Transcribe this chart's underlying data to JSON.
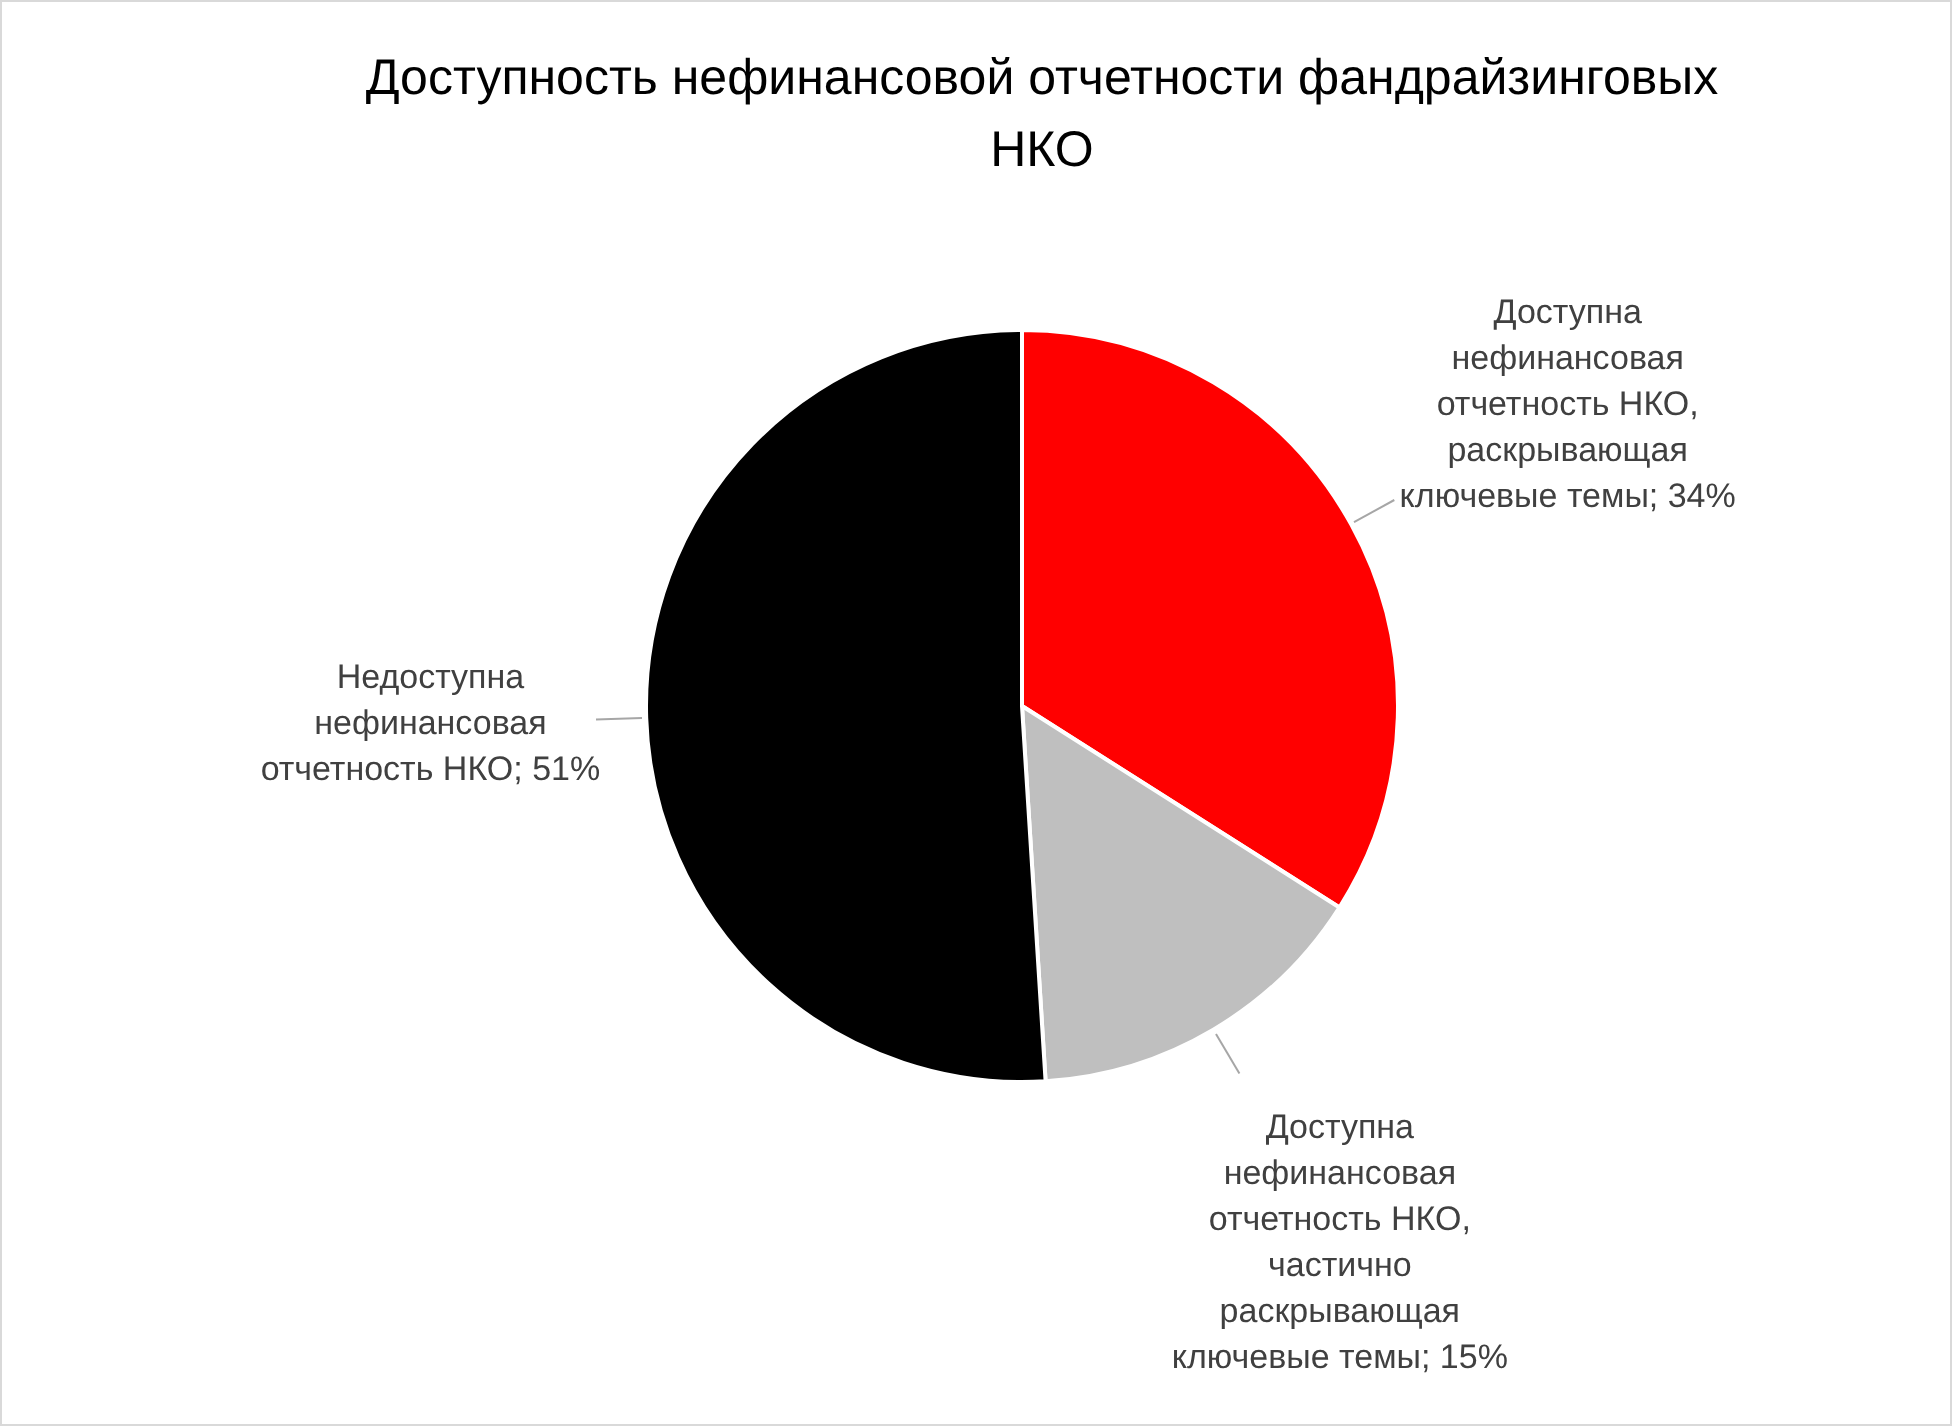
{
  "chart_data": {
    "type": "pie",
    "title": "Доступность нефинансовой отчетности фандрайзинговых НКО",
    "categories": [
      "Доступна нефинансовая отчетность НКО, раскрывающая ключевые темы",
      "Доступна нефинансовая отчетность НКО, частично раскрывающая ключевые темы",
      "Недоступна нефинансовая отчетность НКО"
    ],
    "values": [
      34,
      15,
      51
    ],
    "value_labels": [
      "34%",
      "15%",
      "51%"
    ],
    "colors": [
      "#ff0000",
      "#bfbfbf",
      "#000000"
    ],
    "legend": false
  }
}
